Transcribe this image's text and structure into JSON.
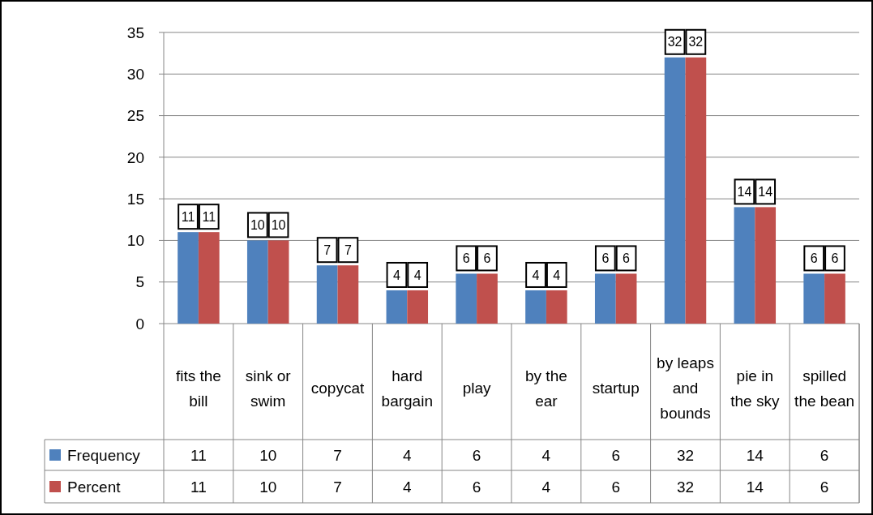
{
  "chart_data": {
    "type": "bar",
    "categories": [
      "fits the bill",
      "sink or swim",
      "copycat",
      "hard bargain",
      "play",
      "by the ear",
      "startup",
      "by leaps and bounds",
      "pie in the sky",
      "spilled the bean"
    ],
    "series": [
      {
        "name": "Frequency",
        "color": "#4f81bd",
        "values": [
          11,
          10,
          7,
          4,
          6,
          4,
          6,
          32,
          14,
          6
        ]
      },
      {
        "name": "Percent",
        "color": "#c0504d",
        "values": [
          11,
          10,
          7,
          4,
          6,
          4,
          6,
          32,
          14,
          6
        ]
      }
    ],
    "annotations": [
      {
        "text": "11",
        "x": "fits the bill",
        "y": 11
      },
      {
        "text": "11",
        "x": "fits the bill",
        "y": 11
      },
      {
        "text": "10",
        "x": "sink or swim",
        "y": 10
      },
      {
        "text": "10",
        "x": "sink or swim",
        "y": 10
      },
      {
        "text": "7",
        "x": "copycat",
        "y": 7
      },
      {
        "text": "7",
        "x": "copycat",
        "y": 7
      },
      {
        "text": "4",
        "x": "hard bargain",
        "y": 4
      },
      {
        "text": "4",
        "x": "hard bargain",
        "y": 4
      },
      {
        "text": "6",
        "x": "play",
        "y": 6
      },
      {
        "text": "6",
        "x": "play",
        "y": 6
      },
      {
        "text": "4",
        "x": "by the ear",
        "y": 4
      },
      {
        "text": "4",
        "x": "by the ear",
        "y": 4
      },
      {
        "text": "6",
        "x": "startup",
        "y": 6
      },
      {
        "text": "6",
        "x": "startup",
        "y": 6
      },
      {
        "text": "32",
        "x": "by leaps and bounds",
        "y": 32
      },
      {
        "text": "32",
        "x": "by leaps and bounds",
        "y": 32
      },
      {
        "text": "14",
        "x": "pie in the sky",
        "y": 14
      },
      {
        "text": "14",
        "x": "pie in the sky",
        "y": 14
      },
      {
        "text": "6",
        "x": "spilled the bean",
        "y": 6
      },
      {
        "text": "6",
        "x": "spilled the bean",
        "y": 6
      }
    ],
    "ylim": [
      0,
      35
    ],
    "yticks": [
      0,
      5,
      10,
      15,
      20,
      25,
      30,
      35
    ],
    "grid": "y",
    "legend": "bottom left",
    "data_labels": true
  }
}
